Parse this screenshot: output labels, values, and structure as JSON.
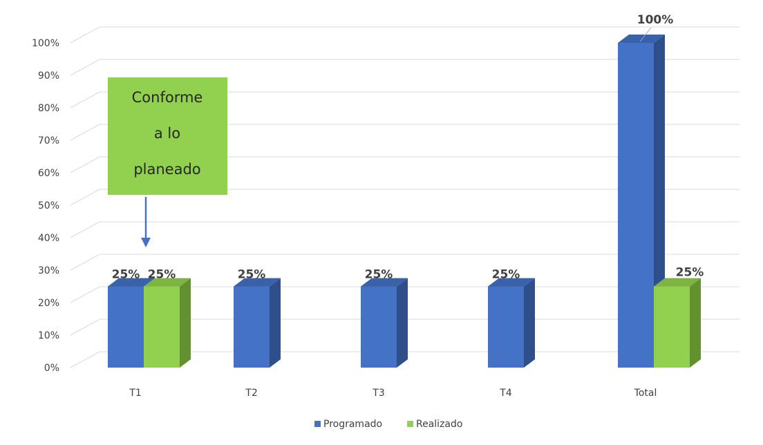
{
  "chart_data": {
    "type": "bar",
    "style": "3d-clustered-column",
    "categories": [
      "T1",
      "T2",
      "T3",
      "T4",
      "Total"
    ],
    "series": [
      {
        "name": "Programado",
        "color": "#4472C4",
        "side_color": "#2F4F8A",
        "top_color": "#3A62AA",
        "values": [
          25,
          25,
          25,
          25,
          100
        ],
        "labels": [
          "25%",
          "25%",
          "25%",
          "25%",
          "100%"
        ]
      },
      {
        "name": "Realizado",
        "color": "#92D050",
        "side_color": "#64912F",
        "top_color": "#7DB540",
        "values": [
          25,
          null,
          null,
          null,
          25
        ],
        "labels": [
          "25%",
          "",
          "",
          "",
          "25%"
        ]
      }
    ],
    "ylim": [
      0,
      100
    ],
    "yticks": [
      "0%",
      "10%",
      "20%",
      "30%",
      "40%",
      "50%",
      "60%",
      "70%",
      "80%",
      "90%",
      "100%"
    ],
    "grid": true,
    "legend": "bottom",
    "title": "",
    "xlabel": "",
    "ylabel": ""
  },
  "callout": {
    "lines": [
      "Conforme",
      "a lo",
      "planeado"
    ],
    "color": "#92D050",
    "arrow_color": "#4472C4",
    "target_category": "T1"
  }
}
